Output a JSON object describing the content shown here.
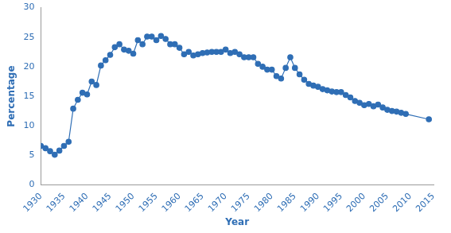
{
  "chart_data": {
    "type": "line",
    "x_label": "Year",
    "y_label": "Percentage",
    "x": [
      1930,
      1931,
      1932,
      1933,
      1934,
      1935,
      1936,
      1937,
      1938,
      1939,
      1940,
      1941,
      1942,
      1943,
      1944,
      1945,
      1946,
      1947,
      1948,
      1949,
      1950,
      1951,
      1952,
      1953,
      1954,
      1955,
      1956,
      1957,
      1958,
      1959,
      1960,
      1961,
      1962,
      1963,
      1964,
      1965,
      1966,
      1967,
      1968,
      1969,
      1970,
      1971,
      1972,
      1973,
      1974,
      1975,
      1976,
      1977,
      1978,
      1979,
      1980,
      1981,
      1982,
      1983,
      1984,
      1985,
      1986,
      1987,
      1988,
      1989,
      1990,
      1991,
      1992,
      1993,
      1994,
      1995,
      1996,
      1997,
      1998,
      1999,
      2000,
      2001,
      2002,
      2003,
      2004,
      2005,
      2006,
      2007,
      2008,
      2009,
      2014
    ],
    "values": [
      6.6,
      6.2,
      5.7,
      5.1,
      5.8,
      6.6,
      7.3,
      12.9,
      14.4,
      15.6,
      15.3,
      17.5,
      16.9,
      20.2,
      21.1,
      22.0,
      23.3,
      23.8,
      22.9,
      22.7,
      22.2,
      24.5,
      23.8,
      25.1,
      25.1,
      24.5,
      25.2,
      24.7,
      23.8,
      23.8,
      23.2,
      22.1,
      22.5,
      21.9,
      22.1,
      22.3,
      22.4,
      22.5,
      22.5,
      22.5,
      22.9,
      22.3,
      22.5,
      22.1,
      21.6,
      21.6,
      21.6,
      20.5,
      20.0,
      19.5,
      19.5,
      18.4,
      18.0,
      19.8,
      21.6,
      19.8,
      18.7,
      17.8,
      17.1,
      16.8,
      16.6,
      16.2,
      16.0,
      15.8,
      15.7,
      15.7,
      15.2,
      14.8,
      14.2,
      13.9,
      13.5,
      13.7,
      13.3,
      13.6,
      13.1,
      12.7,
      12.5,
      12.4,
      12.2,
      12.0,
      11.1
    ],
    "color": "#2f6eb5",
    "marker": "circle",
    "grid": false,
    "xlim": [
      1930,
      2015
    ],
    "xticks": [
      1930,
      1935,
      1940,
      1945,
      1950,
      1955,
      1960,
      1965,
      1970,
      1975,
      1980,
      1985,
      1990,
      1995,
      2000,
      2005,
      2010,
      2015
    ],
    "ylim": [
      0,
      30
    ],
    "yticks": [
      0,
      5,
      10,
      15,
      20,
      25,
      30
    ]
  }
}
